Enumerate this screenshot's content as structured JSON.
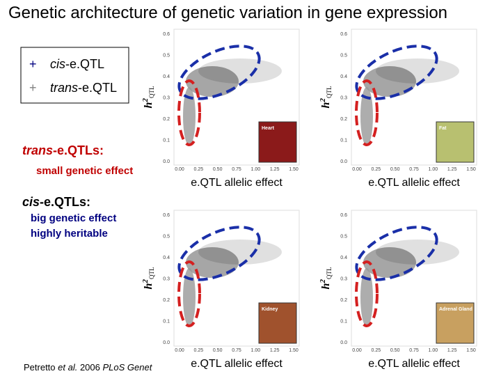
{
  "title": "Genetic architecture of genetic variation in gene expression",
  "legend": [
    {
      "marker": "+",
      "italic": "cis",
      "rest": "-e.QTL"
    },
    {
      "marker": "+",
      "italic": "trans",
      "rest": "-e.QTL"
    }
  ],
  "notes": {
    "trans_heading": {
      "italic": "trans",
      "rest": "-e.QTLs:"
    },
    "trans_lines": [
      "small genetic effect"
    ],
    "cis_heading": {
      "italic": "cis",
      "rest": "-e.QTLs:"
    },
    "cis_lines": [
      "big genetic effect",
      "highly heritable"
    ]
  },
  "citation": {
    "author": "Petretto ",
    "etal": "et al.",
    "year": " 2006 ",
    "journal": "PLoS Genet"
  },
  "axes": {
    "x_label": "e.QTL allelic effect",
    "y_label": {
      "base": "h",
      "sup": "2",
      "sub": "QTL"
    },
    "yticks": [
      "0.6",
      "0.5",
      "0.4",
      "0.3",
      "0.2",
      "0.1",
      "0.0"
    ],
    "xticks": [
      "0.00",
      "0.25",
      "0.50",
      "0.75",
      "1.00",
      "1.25",
      "1.50"
    ]
  },
  "panels": [
    {
      "tissue": "Heart"
    },
    {
      "tissue": "Fat"
    },
    {
      "tissue": "Kidney"
    },
    {
      "tissue": "Adrenal Gland"
    }
  ]
}
